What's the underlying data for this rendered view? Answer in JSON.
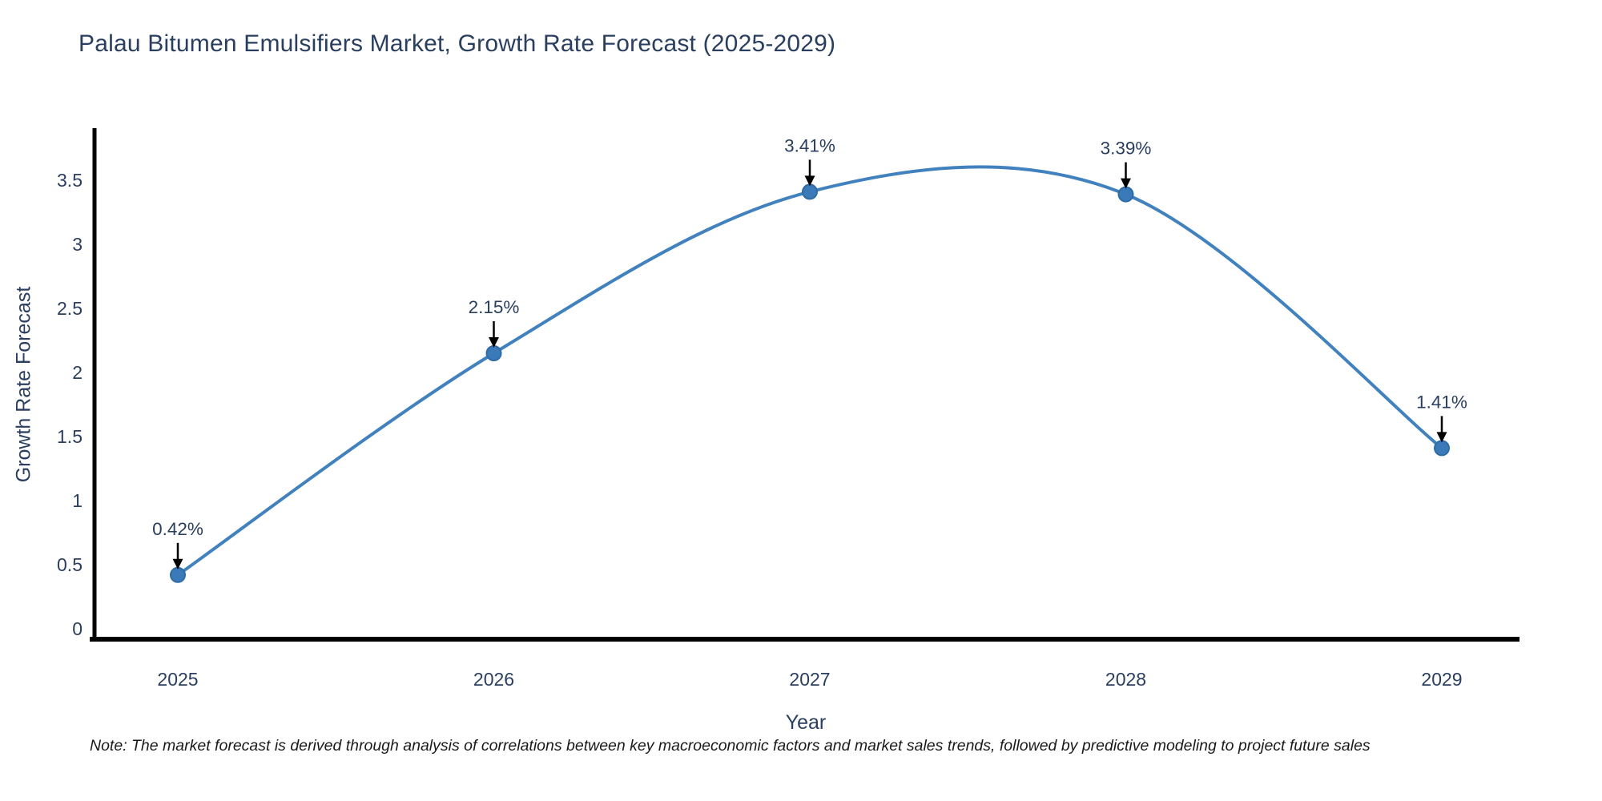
{
  "header": {
    "title": "Palau Bitumen Emulsifiers Market, Growth Rate Forecast (2025-2029)"
  },
  "footer": {
    "note": "Note: The market forecast is derived through analysis of correlations between key macroeconomic factors and market sales trends, followed by predictive modeling to project future sales"
  },
  "chart_data": {
    "type": "line",
    "title": "Palau Bitumen Emulsifiers Market, Growth Rate Forecast (2025-2029)",
    "xlabel": "Year",
    "ylabel": "Growth Rate Forecast",
    "categories": [
      "2025",
      "2026",
      "2027",
      "2028",
      "2029"
    ],
    "values": [
      0.42,
      2.15,
      3.41,
      3.39,
      1.41
    ],
    "point_labels": [
      "0.42%",
      "2.15%",
      "3.41%",
      "3.39%",
      "1.41%"
    ],
    "ytick_labels": [
      "0",
      "0.5",
      "1",
      "1.5",
      "2",
      "2.5",
      "3",
      "3.5"
    ],
    "ytick_values": [
      0,
      0.5,
      1,
      1.5,
      2,
      2.5,
      3,
      3.5
    ],
    "ylim": [
      0,
      3.9
    ],
    "grid": false,
    "legend": "none",
    "smooth": true,
    "colors": {
      "line": "#4182BE",
      "marker_fill": "#3B7AB8",
      "marker_stroke": "#2F6BA5",
      "axis": "#000000",
      "tick_text": "#2a3f5f",
      "annotation_text": "#2a3f5f",
      "arrow": "#000000"
    }
  }
}
